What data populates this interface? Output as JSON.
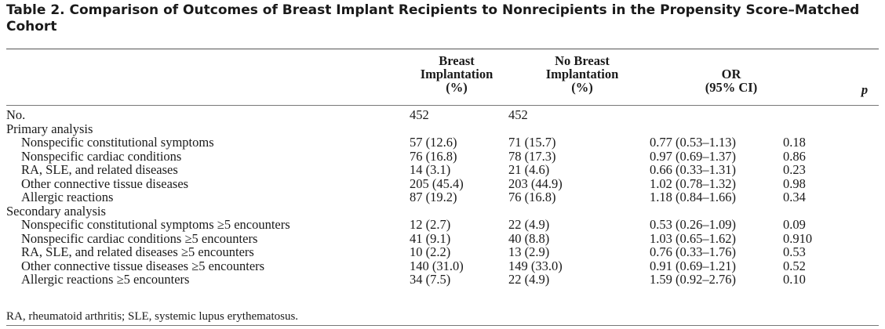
{
  "title": "Table 2.  Comparison of Outcomes of Breast Implant Recipients to Nonrecipients in the Propensity Score–Matched Cohort",
  "headers": {
    "breast_implantation": [
      "Breast",
      "Implantation",
      "(%)"
    ],
    "no_breast_implantation": [
      "No Breast",
      "Implantation",
      "(%)"
    ],
    "or": [
      "OR",
      "(95% CI)"
    ],
    "p": "p"
  },
  "rows": [
    {
      "label": "No.",
      "indent": false,
      "bi": "452",
      "nb": "452",
      "or": "",
      "p": ""
    },
    {
      "label": "Primary analysis",
      "indent": false,
      "bi": "",
      "nb": "",
      "or": "",
      "p": ""
    },
    {
      "label": "Nonspecific constitutional symptoms",
      "indent": true,
      "bi": "57 (12.6)",
      "nb": "71 (15.7)",
      "or": "0.77 (0.53–1.13)",
      "p": "0.18"
    },
    {
      "label": "Nonspecific cardiac conditions",
      "indent": true,
      "bi": "76 (16.8)",
      "nb": "78 (17.3)",
      "or": "0.97 (0.69–1.37)",
      "p": "0.86"
    },
    {
      "label": "RA, SLE, and related diseases",
      "indent": true,
      "bi": "14 (3.1)",
      "nb": "21 (4.6)",
      "or": "0.66 (0.33–1.31)",
      "p": "0.23"
    },
    {
      "label": "Other connective tissue diseases",
      "indent": true,
      "bi": "205 (45.4)",
      "nb": "203 (44.9)",
      "or": "1.02 (0.78–1.32)",
      "p": "0.98"
    },
    {
      "label": "Allergic reactions",
      "indent": true,
      "bi": "87 (19.2)",
      "nb": "76 (16.8)",
      "or": "1.18 (0.84–1.66)",
      "p": "0.34"
    },
    {
      "label": "Secondary analysis",
      "indent": false,
      "bi": "",
      "nb": "",
      "or": "",
      "p": ""
    },
    {
      "label": "Nonspecific constitutional symptoms ≥5 encounters",
      "indent": true,
      "bi": "12 (2.7)",
      "nb": "22 (4.9)",
      "or": "0.53 (0.26–1.09)",
      "p": "0.09"
    },
    {
      "label": "Nonspecific cardiac conditions ≥5 encounters",
      "indent": true,
      "bi": "41 (9.1)",
      "nb": "40 (8.8)",
      "or": "1.03 (0.65–1.62)",
      "p": "0.910"
    },
    {
      "label": "RA, SLE, and related diseases ≥5 encounters",
      "indent": true,
      "bi": "10 (2.2)",
      "nb": "13 (2.9)",
      "or": "0.76 (0.33–1.76)",
      "p": "0.53"
    },
    {
      "label": "Other connective tissue diseases ≥5 encounters",
      "indent": true,
      "bi": "140 (31.0)",
      "nb": "149 (33.0)",
      "or": "0.91 (0.69–1.21)",
      "p": "0.52"
    },
    {
      "label": "Allergic reactions ≥5 encounters",
      "indent": true,
      "bi": "34 (7.5)",
      "nb": "22 (4.9)",
      "or": "1.59 (0.92–2.76)",
      "p": "0.10"
    }
  ],
  "footnote": "RA, rheumatoid arthritis; SLE, systemic lupus erythematosus."
}
